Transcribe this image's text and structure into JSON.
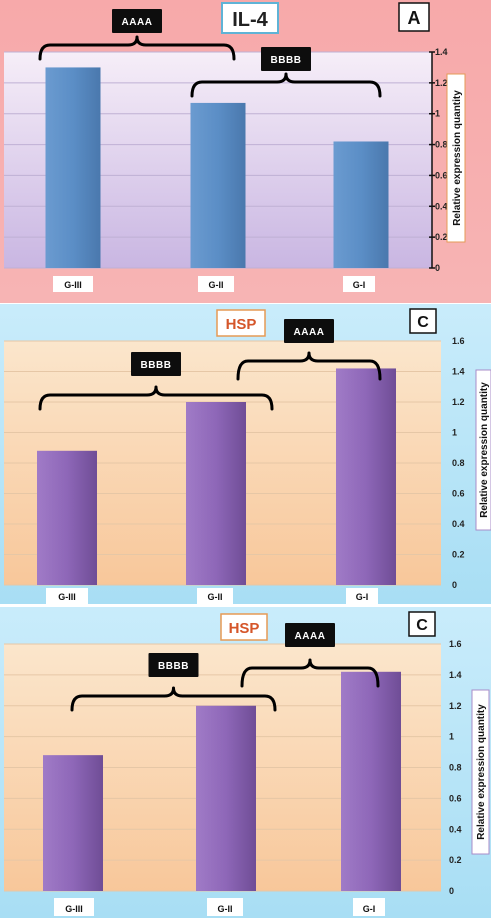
{
  "chart_data": [
    {
      "type": "bar",
      "title": "IL-4",
      "panel_label": "A",
      "ylabel": "Relative expression quantity",
      "xlabel": "",
      "categories": [
        "G-III",
        "G-II",
        "G-I"
      ],
      "values": [
        1.3,
        1.07,
        0.82
      ],
      "ylim": [
        0,
        1.4
      ],
      "yticks": [
        "0",
        "0.2",
        "0.4",
        "0.6",
        "0.8",
        "1",
        "1.2",
        "1.4"
      ],
      "grid": true,
      "bar_color": "#5b8ec6",
      "annotations": [
        {
          "label": "AAAA",
          "from": "G-III",
          "to": "G-II"
        },
        {
          "label": "BBBB",
          "from": "G-II",
          "to": "G-I"
        }
      ]
    },
    {
      "type": "bar",
      "title": "HSP",
      "panel_label": "C",
      "ylabel": "Relative expression quantity",
      "xlabel": "",
      "categories": [
        "G-III",
        "G-II",
        "G-I"
      ],
      "values": [
        0.88,
        1.2,
        1.42
      ],
      "ylim": [
        0,
        1.6
      ],
      "yticks": [
        "0",
        "0.2",
        "0.4",
        "0.6",
        "0.8",
        "1",
        "1.2",
        "1.4",
        "1.6"
      ],
      "grid": true,
      "bar_color": "#8e67b8",
      "annotations": [
        {
          "label": "BBBB",
          "from": "G-III",
          "to": "G-II"
        },
        {
          "label": "AAAA",
          "from": "G-II",
          "to": "G-I"
        }
      ]
    },
    {
      "type": "bar",
      "title": "HSP",
      "panel_label": "C",
      "ylabel": "Relative expression quantity",
      "xlabel": "",
      "categories": [
        "G-III",
        "G-II",
        "G-I"
      ],
      "values": [
        0.88,
        1.2,
        1.42
      ],
      "ylim": [
        0,
        1.6
      ],
      "yticks": [
        "0",
        "0.2",
        "0.4",
        "0.6",
        "0.8",
        "1",
        "1.2",
        "1.4",
        "1.6"
      ],
      "grid": true,
      "bar_color": "#8e67b8",
      "annotations": [
        {
          "label": "BBBB",
          "from": "G-III",
          "to": "G-II"
        },
        {
          "label": "AAAA",
          "from": "G-II",
          "to": "G-I"
        }
      ]
    }
  ]
}
